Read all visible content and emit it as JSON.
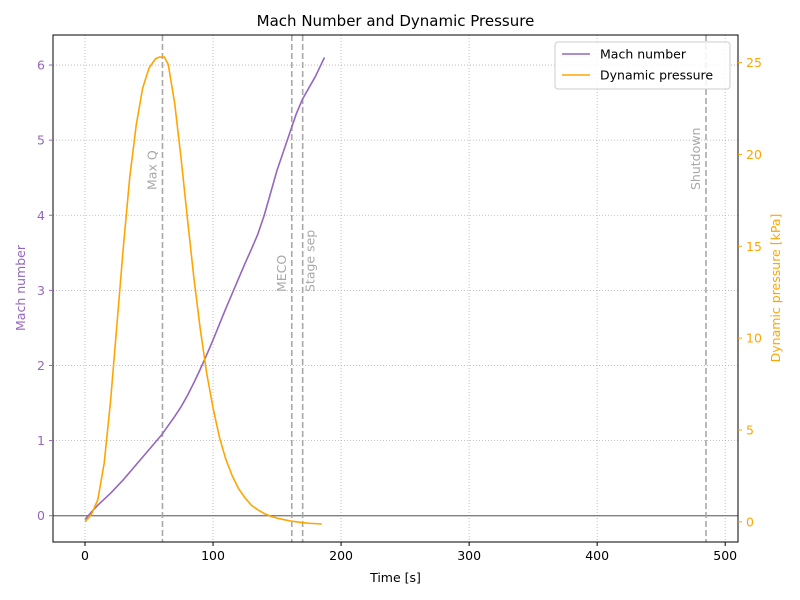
{
  "chart_data": {
    "type": "line",
    "title": "Mach Number and Dynamic Pressure",
    "xlabel": "Time [s]",
    "ylabel_left": "Mach number",
    "ylabel_right": "Dynamic pressure [kPa]",
    "xlim": [
      -25,
      510
    ],
    "ylim_left": [
      -0.35,
      6.4
    ],
    "ylim_right": [
      -1.1,
      26.5
    ],
    "x_ticks": [
      0,
      100,
      200,
      300,
      400,
      500
    ],
    "y_left_ticks": [
      0,
      1,
      2,
      3,
      4,
      5,
      6
    ],
    "y_right_ticks": [
      0,
      5,
      10,
      15,
      20,
      25
    ],
    "grid": true,
    "legend_position": "top-right",
    "colors": {
      "mach": "#9467bd",
      "pressure": "#ffa500",
      "event_line": "#a8a8a8",
      "zero_line": "#808080"
    },
    "series": [
      {
        "name": "Mach number",
        "axis": "left",
        "x": [
          0,
          5,
          10,
          15,
          20,
          25,
          30,
          35,
          40,
          45,
          50,
          55,
          60,
          65,
          70,
          75,
          80,
          85,
          90,
          95,
          100,
          105,
          110,
          115,
          120,
          125,
          130,
          135,
          140,
          145,
          150,
          155,
          160,
          165,
          170,
          175,
          180,
          187
        ],
        "values": [
          -0.05,
          0.05,
          0.14,
          0.22,
          0.3,
          0.39,
          0.48,
          0.58,
          0.68,
          0.78,
          0.88,
          0.98,
          1.08,
          1.2,
          1.32,
          1.45,
          1.6,
          1.77,
          1.95,
          2.14,
          2.34,
          2.55,
          2.76,
          2.96,
          3.16,
          3.36,
          3.55,
          3.75,
          4.0,
          4.3,
          4.6,
          4.85,
          5.1,
          5.35,
          5.55,
          5.7,
          5.85,
          6.1
        ]
      },
      {
        "name": "Dynamic pressure",
        "axis": "right",
        "x": [
          0,
          5,
          10,
          15,
          20,
          25,
          30,
          35,
          40,
          45,
          50,
          55,
          58,
          60,
          62,
          65,
          70,
          75,
          80,
          85,
          90,
          95,
          100,
          105,
          110,
          115,
          120,
          125,
          130,
          135,
          140,
          145,
          150,
          155,
          160,
          165,
          170,
          175,
          180,
          185
        ],
        "values": [
          0.0,
          0.4,
          1.2,
          3.2,
          6.6,
          10.8,
          15.0,
          18.8,
          21.6,
          23.6,
          24.7,
          25.2,
          25.3,
          25.3,
          25.3,
          24.9,
          22.8,
          19.8,
          16.5,
          13.3,
          10.5,
          8.1,
          6.2,
          4.6,
          3.4,
          2.5,
          1.8,
          1.3,
          0.9,
          0.65,
          0.45,
          0.3,
          0.2,
          0.12,
          0.05,
          0.0,
          -0.05,
          -0.08,
          -0.1,
          -0.12
        ]
      }
    ],
    "events": [
      {
        "label": "Max Q",
        "x": 60.5
      },
      {
        "label": "MECO",
        "x": 161.5
      },
      {
        "label": "Stage sep",
        "x": 170
      },
      {
        "label": "Shutdown",
        "x": 485
      }
    ]
  }
}
